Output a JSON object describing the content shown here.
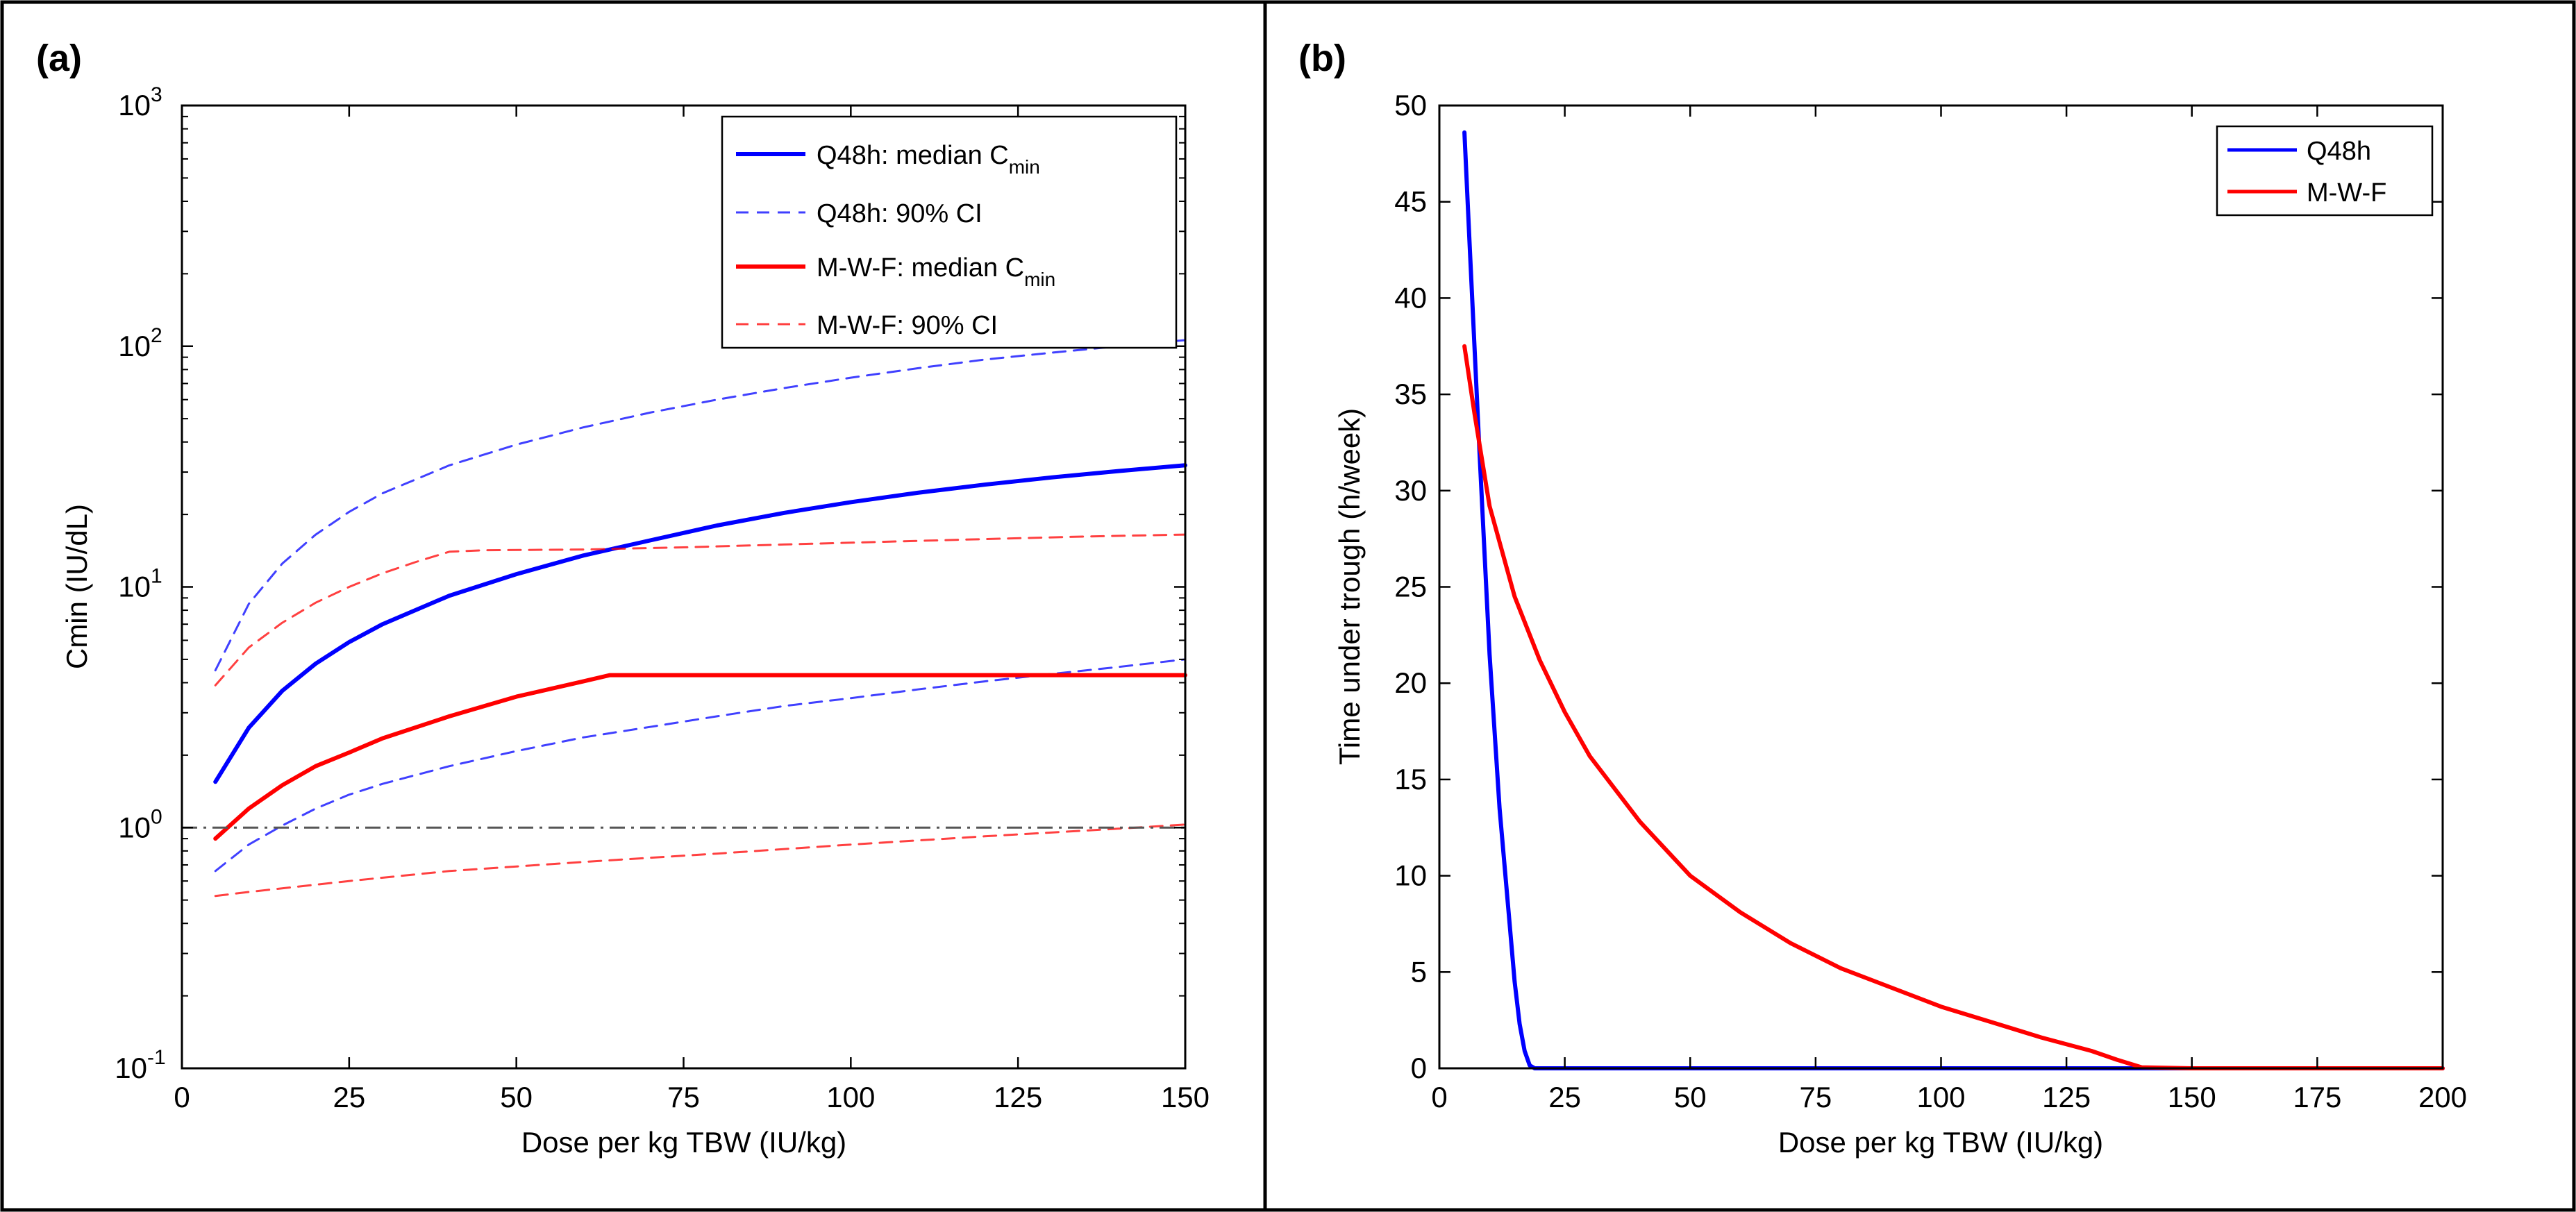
{
  "chart_data": [
    {
      "type": "line",
      "panel_label": "(a)",
      "xlabel": "Dose per kg TBW (IU/kg)",
      "ylabel": "Cmin (IU/dL)",
      "xlim": [
        0,
        150
      ],
      "ylim": [
        0.1,
        1000
      ],
      "yscale": "log",
      "xticks": [
        0,
        25,
        50,
        75,
        100,
        125,
        150
      ],
      "yticks": [
        {
          "base": "10",
          "exp": "-1"
        },
        {
          "base": "10",
          "exp": "0"
        },
        {
          "base": "10",
          "exp": "1"
        },
        {
          "base": "10",
          "exp": "2"
        },
        {
          "base": "10",
          "exp": "3"
        }
      ],
      "reference_line": {
        "y": 1,
        "style": "dash-dot",
        "color": "#555555"
      },
      "legend_position": "top-right",
      "series": [
        {
          "name": "Q48h: median C",
          "subscript": "min",
          "color": "#0000ff",
          "style": "solid",
          "x": [
            5,
            10,
            15,
            20,
            25,
            30,
            40,
            50,
            60,
            70,
            80,
            90,
            100,
            110,
            120,
            130,
            140,
            150
          ],
          "y": [
            1.55,
            2.6,
            3.7,
            4.8,
            5.9,
            7.0,
            9.2,
            11.3,
            13.5,
            15.6,
            18.0,
            20.3,
            22.5,
            24.6,
            26.6,
            28.5,
            30.3,
            32.0
          ]
        },
        {
          "name": "Q48h: 90% CI",
          "color": "#0000ff",
          "style": "dashed",
          "x": [
            5,
            10,
            15,
            20,
            25,
            30,
            40,
            50,
            60,
            70,
            80,
            90,
            100,
            110,
            120,
            130,
            140,
            150
          ],
          "y": [
            4.5,
            8.5,
            12.5,
            16.5,
            20.5,
            24.5,
            32.0,
            39.0,
            46.0,
            53.0,
            60.0,
            67.0,
            74.0,
            81.0,
            88.0,
            94.0,
            100.0,
            106.0
          ]
        },
        {
          "name": "Q48h: 90% CI",
          "color": "#0000ff",
          "style": "dashed",
          "in_legend": false,
          "x": [
            5,
            10,
            15,
            20,
            25,
            30,
            40,
            50,
            60,
            70,
            80,
            90,
            100,
            110,
            120,
            130,
            140,
            150
          ],
          "y": [
            0.66,
            0.85,
            1.02,
            1.2,
            1.37,
            1.52,
            1.8,
            2.08,
            2.37,
            2.62,
            2.9,
            3.2,
            3.45,
            3.75,
            4.05,
            4.35,
            4.65,
            5.0
          ]
        },
        {
          "name": "M-W-F: median C",
          "subscript": "min",
          "color": "#ff0000",
          "style": "solid",
          "x": [
            5,
            10,
            15,
            20,
            25,
            30,
            40,
            50,
            60,
            64,
            70,
            80,
            100,
            120,
            150
          ],
          "y": [
            0.9,
            1.2,
            1.5,
            1.8,
            2.05,
            2.35,
            2.9,
            3.5,
            4.05,
            4.3,
            4.3,
            4.3,
            4.3,
            4.3,
            4.3
          ]
        },
        {
          "name": "M-W-F: 90% CI",
          "color": "#ff0000",
          "style": "dashed",
          "x": [
            5,
            10,
            15,
            20,
            25,
            30,
            35,
            40,
            45,
            60,
            75,
            90,
            105,
            120,
            135,
            150
          ],
          "y": [
            3.9,
            5.6,
            7.1,
            8.6,
            10.0,
            11.4,
            12.7,
            14.0,
            14.2,
            14.3,
            14.6,
            15.0,
            15.4,
            15.8,
            16.2,
            16.5
          ]
        },
        {
          "name": "M-W-F: 90% CI",
          "color": "#ff0000",
          "style": "dashed",
          "in_legend": false,
          "x": [
            5,
            10,
            25,
            40,
            60,
            80,
            100,
            120,
            140,
            150
          ],
          "y": [
            0.52,
            0.54,
            0.6,
            0.66,
            0.72,
            0.78,
            0.85,
            0.92,
            0.99,
            1.03
          ]
        }
      ]
    },
    {
      "type": "line",
      "panel_label": "(b)",
      "xlabel": "Dose per kg TBW (IU/kg)",
      "ylabel": "Time under trough (h/week)",
      "xlim": [
        0,
        200
      ],
      "ylim": [
        0,
        50
      ],
      "yscale": "linear",
      "xticks": [
        0,
        25,
        50,
        75,
        100,
        125,
        150,
        175,
        200
      ],
      "yticks": [
        0,
        5,
        10,
        15,
        20,
        25,
        30,
        35,
        40,
        45,
        50
      ],
      "legend_position": "top-right",
      "series": [
        {
          "name": "Q48h",
          "color": "#0000ff",
          "style": "solid",
          "x": [
            5,
            6,
            8,
            10,
            12,
            14,
            15,
            16,
            17,
            18,
            19,
            25,
            50,
            75,
            100,
            125,
            150,
            175,
            200
          ],
          "y": [
            48.6,
            43,
            32,
            21.5,
            13.5,
            7.5,
            4.5,
            2.3,
            0.9,
            0.15,
            0,
            0,
            0,
            0,
            0,
            0,
            0,
            0,
            0
          ]
        },
        {
          "name": "M-W-F",
          "color": "#ff0000",
          "style": "solid",
          "x": [
            5,
            7,
            10,
            15,
            20,
            25,
            30,
            40,
            50,
            60,
            70,
            80,
            90,
            100,
            110,
            120,
            130,
            135,
            140,
            150,
            175,
            200
          ],
          "y": [
            37.5,
            34,
            29.2,
            24.5,
            21.2,
            18.5,
            16.2,
            12.8,
            10.0,
            8.1,
            6.5,
            5.2,
            4.2,
            3.2,
            2.4,
            1.6,
            0.9,
            0.45,
            0.05,
            0,
            0,
            0
          ]
        }
      ]
    }
  ]
}
